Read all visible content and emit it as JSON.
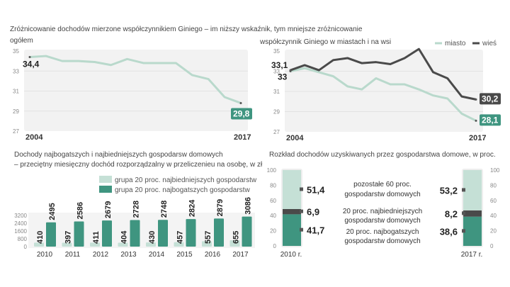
{
  "chart_data": [
    {
      "type": "line",
      "title": "Zróżnicowanie dochodów mierzone współczynnikiem Giniego – im niższy wskaźnik, tym mniejsze zróżnicowanie",
      "subtitle": "ogółem",
      "x": [
        2004,
        2005,
        2006,
        2007,
        2008,
        2009,
        2010,
        2011,
        2012,
        2013,
        2014,
        2015,
        2016,
        2017
      ],
      "x_tick_labels": [
        "2004",
        "2017"
      ],
      "yticks": [
        27,
        29,
        31,
        33,
        35
      ],
      "ylim": [
        27,
        35
      ],
      "grid": true,
      "series": [
        {
          "values": [
            34.4,
            34.5,
            34.0,
            34.0,
            33.9,
            33.6,
            34.2,
            33.8,
            33.8,
            33.8,
            32.6,
            32.2,
            30.4,
            29.8
          ],
          "color": "#b9d9cc"
        }
      ],
      "labels": {
        "first": "34,4",
        "last": "29,8"
      }
    },
    {
      "type": "line",
      "title": "współczynnik Giniego w miastach i na wsi",
      "x": [
        2004,
        2005,
        2006,
        2007,
        2008,
        2009,
        2010,
        2011,
        2012,
        2013,
        2014,
        2015,
        2016,
        2017
      ],
      "x_tick_labels": [
        "2004",
        "2017"
      ],
      "yticks": [
        27,
        29,
        31,
        33,
        35
      ],
      "ylim": [
        27,
        35
      ],
      "grid": true,
      "legend": "top-right",
      "series": [
        {
          "name": "miasto",
          "values": [
            33.0,
            33.3,
            32.9,
            32.5,
            31.5,
            31.2,
            32.3,
            31.7,
            31.7,
            31.2,
            30.6,
            30.3,
            28.8,
            28.1
          ],
          "color": "#b9d9cc",
          "first": "33",
          "last": "28,1"
        },
        {
          "name": "wieś",
          "values": [
            33.1,
            33.6,
            33.1,
            34.1,
            34.3,
            33.8,
            33.9,
            33.7,
            34.3,
            35.2,
            32.9,
            32.3,
            30.5,
            30.2
          ],
          "color": "#4a4a4a",
          "first": "33,1",
          "last": "30,2"
        }
      ]
    },
    {
      "type": "bar",
      "title": "Dochody najbogatszych i najbiedniejszych gospodarsw domowych",
      "subtitle": "– przeciętny miesięczny dochód rozporządzalny w przeliczenieu na osobę, w zł",
      "categories": [
        "2010",
        "2011",
        "2012",
        "2013",
        "2014",
        "2015",
        "2016",
        "2017"
      ],
      "yticks": [
        0,
        800,
        1600,
        2400,
        3200
      ],
      "ylim": [
        0,
        3200
      ],
      "legend": "top-right",
      "series": [
        {
          "name": "grupa 20 proc. najbiedniejszych gospodarstw",
          "values": [
            410,
            397,
            411,
            404,
            430,
            457,
            557,
            655
          ],
          "color": "#c5e0d6"
        },
        {
          "name": "grupa 20 proc. najbogatszych gospodarstw",
          "values": [
            2495,
            2586,
            2679,
            2728,
            2748,
            2824,
            2879,
            3086
          ],
          "color": "#3f9580"
        }
      ]
    },
    {
      "type": "bar",
      "stacked": true,
      "title": "Rozkład dochodów uzyskiwanych przez gospodarstwa domowe, w proc.",
      "categories": [
        "2010 r.",
        "2017 r."
      ],
      "yticks": [
        0,
        20,
        40,
        60,
        80,
        100
      ],
      "ylim": [
        0,
        100
      ],
      "series": [
        {
          "name": "20 proc. najbogatszych gospodarstw domowych",
          "values": [
            41.7,
            38.6
          ],
          "labels": [
            "41,7",
            "38,6"
          ],
          "color": "#3f9580"
        },
        {
          "name": "20 proc. najbiedniejszych gospodarstw domowych",
          "values": [
            6.9,
            8.2
          ],
          "labels": [
            "6,9",
            "8,2"
          ],
          "color": "#4a4a4a"
        },
        {
          "name": "pozostałe 60 proc. gospodarstw domowych",
          "values": [
            51.4,
            53.2
          ],
          "labels": [
            "51,4",
            "53,2"
          ],
          "color": "#c5e0d6"
        }
      ]
    }
  ]
}
